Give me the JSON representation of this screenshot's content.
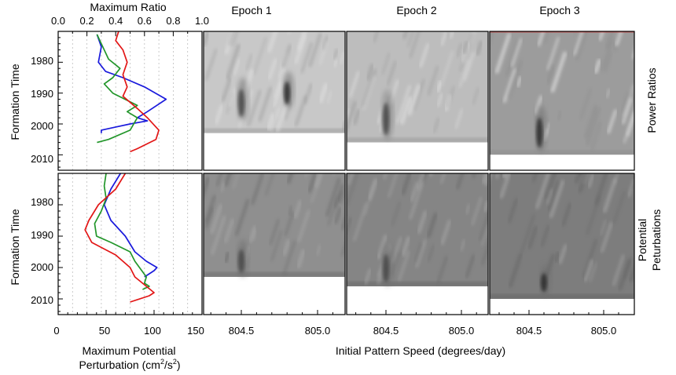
{
  "colors": {
    "epoch1": "#1a1adc",
    "epoch2": "#22962a",
    "epoch3": "#e21616",
    "frame": "#000000"
  },
  "labels": {
    "top_axis_title": "Maximum Ratio",
    "bottom_axis_title_line1": "Maximum Potential",
    "bottom_axis_title_line2": "Perturbation (cm",
    "bottom_axis_units_tail": "/s",
    "bottom_axis_close": ")",
    "y_axis_title": "Formation Time",
    "x_axis_title": "Initial Pattern Speed (degrees/day)",
    "row_label_top": "Power Ratios",
    "row_label_bottom_line1": "Potential",
    "row_label_bottom_line2": "Peturbations",
    "epoch_titles": [
      "Epoch 1",
      "Epoch 2",
      "Epoch 3"
    ]
  },
  "chart_data": [
    {
      "type": "line",
      "panel": "power-ratio-profiles",
      "xlabel": "Maximum Ratio",
      "ylabel": "Formation Time",
      "xlim": [
        0.0,
        1.0
      ],
      "ylim": [
        1970,
        2015
      ],
      "x_ticks": [
        "0.0",
        "0.2",
        "0.4",
        "0.6",
        "0.8",
        "1.0"
      ],
      "y_ticks": [
        "1980",
        "1990",
        "2000",
        "2010"
      ],
      "series": [
        {
          "color": "epoch1",
          "points": [
            [
              0.27,
              1971
            ],
            [
              0.3,
              1975
            ],
            [
              0.28,
              1980
            ],
            [
              0.33,
              1983
            ],
            [
              0.45,
              1985
            ],
            [
              0.6,
              1988
            ],
            [
              0.75,
              1992
            ],
            [
              0.62,
              1996
            ],
            [
              0.55,
              1998
            ],
            [
              0.62,
              1999
            ],
            [
              0.5,
              2000
            ],
            [
              0.4,
              2001
            ],
            [
              0.3,
              2002
            ],
            [
              0.3,
              2003
            ]
          ]
        },
        {
          "color": "epoch2",
          "points": [
            [
              0.27,
              1971
            ],
            [
              0.3,
              1974
            ],
            [
              0.35,
              1979
            ],
            [
              0.43,
              1982
            ],
            [
              0.38,
              1985
            ],
            [
              0.32,
              1987
            ],
            [
              0.38,
              1990
            ],
            [
              0.55,
              1994
            ],
            [
              0.48,
              1996
            ],
            [
              0.55,
              1998
            ],
            [
              0.5,
              2002
            ],
            [
              0.35,
              2005
            ],
            [
              0.27,
              2006
            ]
          ]
        },
        {
          "color": "epoch3",
          "points": [
            [
              0.42,
              1970
            ],
            [
              0.4,
              1973
            ],
            [
              0.45,
              1976
            ],
            [
              0.48,
              1980
            ],
            [
              0.45,
              1984
            ],
            [
              0.48,
              1988
            ],
            [
              0.45,
              1991
            ],
            [
              0.55,
              1995
            ],
            [
              0.62,
              1998
            ],
            [
              0.7,
              2002
            ],
            [
              0.68,
              2005
            ],
            [
              0.55,
              2008
            ],
            [
              0.5,
              2009
            ]
          ]
        }
      ]
    },
    {
      "type": "line",
      "panel": "potential-perturbation-profiles",
      "xlabel": "Maximum Potential Perturbation (cm^2/s^2)",
      "ylabel": "Formation Time",
      "xlim": [
        0,
        150
      ],
      "ylim": [
        1970,
        2015
      ],
      "x_ticks": [
        "0",
        "50",
        "100",
        "150"
      ],
      "y_ticks": [
        "1980",
        "1990",
        "2000",
        "2010"
      ],
      "series": [
        {
          "color": "epoch1",
          "points": [
            [
              65,
              1970
            ],
            [
              55,
              1975
            ],
            [
              48,
              1980
            ],
            [
              55,
              1985
            ],
            [
              70,
              1990
            ],
            [
              80,
              1995
            ],
            [
              92,
              1998
            ],
            [
              103,
              2000
            ],
            [
              100,
              2001
            ],
            [
              90,
              2003
            ]
          ]
        },
        {
          "color": "epoch2",
          "points": [
            [
              50,
              1970
            ],
            [
              48,
              1974
            ],
            [
              50,
              1978
            ],
            [
              45,
              1982
            ],
            [
              38,
              1986
            ],
            [
              40,
              1990
            ],
            [
              55,
              1992
            ],
            [
              75,
              1995
            ],
            [
              80,
              1998
            ],
            [
              92,
              2003
            ],
            [
              90,
              2005
            ],
            [
              95,
              2006
            ],
            [
              88,
              2007
            ]
          ]
        },
        {
          "color": "epoch3",
          "points": [
            [
              70,
              1970
            ],
            [
              60,
              1975
            ],
            [
              42,
              1980
            ],
            [
              32,
              1985
            ],
            [
              28,
              1988
            ],
            [
              35,
              1992
            ],
            [
              60,
              1996
            ],
            [
              75,
              2000
            ],
            [
              80,
              2003
            ],
            [
              100,
              2008
            ],
            [
              95,
              2009
            ],
            [
              75,
              2011
            ]
          ]
        }
      ]
    },
    {
      "type": "heatmap",
      "panel": "contour-maps",
      "xlabel": "Initial Pattern Speed (degrees/day)",
      "x_ticks": [
        "804.5",
        "805.0"
      ],
      "columns": [
        "Epoch 1",
        "Epoch 2",
        "Epoch 3"
      ],
      "rows": [
        "Power Ratios",
        "Potential Peturbations"
      ],
      "colormap": "grayscale",
      "streak_count": 140,
      "data_cutoff_year": [
        2003,
        2006,
        2010
      ],
      "blobs": [
        {
          "epoch": 1,
          "row": "Power Ratios",
          "x": 804.5,
          "y_range": [
            1986,
            1998
          ],
          "level": "dark"
        },
        {
          "epoch": 1,
          "row": "Power Ratios",
          "x": 804.8,
          "y_range": [
            1984,
            1994
          ],
          "level": "darkest"
        },
        {
          "epoch": 2,
          "row": "Power Ratios",
          "x": 804.5,
          "y_range": [
            1990,
            2004
          ],
          "level": "dark"
        },
        {
          "epoch": 3,
          "row": "Power Ratios",
          "x": 804.57,
          "y_range": [
            1995,
            2008
          ],
          "level": "darkest"
        },
        {
          "epoch": 1,
          "row": "Potential Peturbations",
          "x": 804.5,
          "y_range": [
            1992,
            2002
          ],
          "level": "dark"
        },
        {
          "epoch": 2,
          "row": "Potential Peturbations",
          "x": 804.5,
          "y_range": [
            1993,
            2005
          ],
          "level": "dark"
        },
        {
          "epoch": 3,
          "row": "Potential Peturbations",
          "x": 804.6,
          "y_range": [
            2000,
            2008
          ],
          "level": "darkest"
        }
      ]
    }
  ]
}
